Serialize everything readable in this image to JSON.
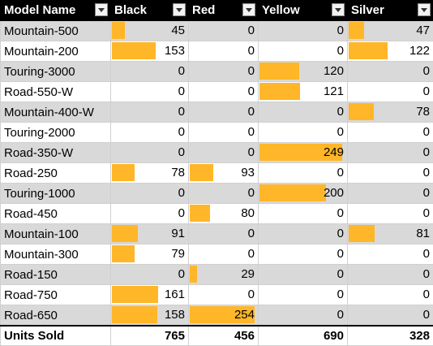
{
  "headers": [
    "Model Name",
    "Black",
    "Red",
    "Yellow",
    "Silver"
  ],
  "bar_color": "#ffb628",
  "header_bg": "#000000",
  "stripe_color": "#d9d9d9",
  "rows": [
    {
      "name": "Mountain-500",
      "values": [
        45,
        0,
        0,
        47
      ]
    },
    {
      "name": "Mountain-200",
      "values": [
        153,
        0,
        0,
        122
      ]
    },
    {
      "name": "Touring-3000",
      "values": [
        0,
        0,
        120,
        0
      ]
    },
    {
      "name": "Road-550-W",
      "values": [
        0,
        0,
        121,
        0
      ]
    },
    {
      "name": "Mountain-400-W",
      "values": [
        0,
        0,
        0,
        78
      ]
    },
    {
      "name": "Touring-2000",
      "values": [
        0,
        0,
        0,
        0
      ]
    },
    {
      "name": "Road-350-W",
      "values": [
        0,
        0,
        249,
        0
      ]
    },
    {
      "name": "Road-250",
      "values": [
        78,
        93,
        0,
        0
      ]
    },
    {
      "name": "Touring-1000",
      "values": [
        0,
        0,
        200,
        0
      ]
    },
    {
      "name": "Road-450",
      "values": [
        0,
        80,
        0,
        0
      ]
    },
    {
      "name": "Mountain-100",
      "values": [
        91,
        0,
        0,
        81
      ]
    },
    {
      "name": "Mountain-300",
      "values": [
        79,
        0,
        0,
        0
      ]
    },
    {
      "name": "Road-150",
      "values": [
        0,
        29,
        0,
        0
      ]
    },
    {
      "name": "Road-750",
      "values": [
        161,
        0,
        0,
        0
      ]
    },
    {
      "name": "Road-650",
      "values": [
        158,
        254,
        0,
        0
      ]
    }
  ],
  "totals": {
    "label": "Units Sold",
    "values": [
      765,
      456,
      690,
      328
    ]
  }
}
